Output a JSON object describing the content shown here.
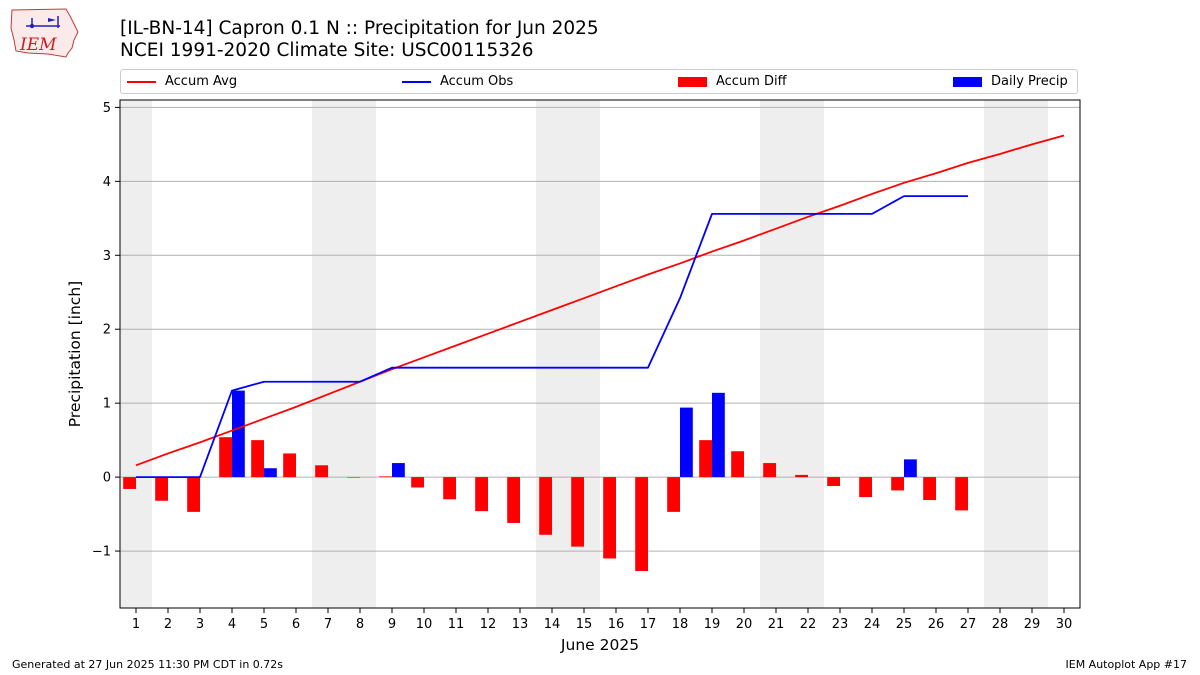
{
  "header": {
    "logo_text": "IEM",
    "title_line1": "[IL-BN-14] Capron 0.1 N :: Precipitation for Jun 2025",
    "title_line2": "NCEI 1991-2020 Climate Site: USC00115326"
  },
  "legend": [
    {
      "label": "Accum Avg",
      "kind": "line",
      "color": "#ff0000"
    },
    {
      "label": "Accum Obs",
      "kind": "line",
      "color": "#0000ff"
    },
    {
      "label": "Accum Diff",
      "kind": "bar",
      "color": "#ff0000"
    },
    {
      "label": "Daily Precip",
      "kind": "bar",
      "color": "#0000ff"
    }
  ],
  "footer": {
    "left": "Generated at 27 Jun 2025 11:30 PM CDT in 0.72s",
    "right": "IEM Autoplot App #17"
  },
  "chart_data": {
    "type": "bar",
    "xlabel": "June 2025",
    "ylabel": "Precipitation [inch]",
    "xlim": [
      0.5,
      30.5
    ],
    "ylim": [
      -1.77,
      5.1
    ],
    "yticks": [
      -1,
      0,
      1,
      2,
      3,
      4,
      5
    ],
    "ytick_labels": [
      "−1",
      "0",
      "1",
      "2",
      "3",
      "4",
      "5"
    ],
    "xticks": [
      1,
      2,
      3,
      4,
      5,
      6,
      7,
      8,
      9,
      10,
      11,
      12,
      13,
      14,
      15,
      16,
      17,
      18,
      19,
      20,
      21,
      22,
      23,
      24,
      25,
      26,
      27,
      28,
      29,
      30
    ],
    "grid": "horizontal",
    "weekend_shading": [
      [
        0.5,
        1.5
      ],
      [
        6.5,
        8.5
      ],
      [
        13.5,
        15.5
      ],
      [
        20.5,
        22.5
      ],
      [
        27.5,
        29.5
      ]
    ],
    "series": [
      {
        "name": "Accum Avg",
        "kind": "line",
        "color": "#ff0000",
        "x": [
          1,
          2,
          3,
          4,
          5,
          6,
          7,
          8,
          9,
          10,
          11,
          12,
          13,
          14,
          15,
          16,
          17,
          18,
          19,
          20,
          21,
          22,
          23,
          24,
          25,
          26,
          27,
          28,
          29,
          30
        ],
        "values": [
          0.16,
          0.32,
          0.47,
          0.63,
          0.79,
          0.95,
          1.12,
          1.29,
          1.46,
          1.62,
          1.78,
          1.94,
          2.1,
          2.26,
          2.42,
          2.58,
          2.74,
          2.89,
          3.05,
          3.2,
          3.36,
          3.52,
          3.67,
          3.83,
          3.98,
          4.11,
          4.25,
          4.37,
          4.5,
          4.62
        ]
      },
      {
        "name": "Accum Obs",
        "kind": "line",
        "color": "#0000ff",
        "x": [
          1,
          2,
          3,
          4,
          5,
          6,
          7,
          8,
          9,
          10,
          11,
          12,
          13,
          14,
          15,
          16,
          17,
          18,
          19,
          20,
          21,
          22,
          23,
          24,
          25,
          26,
          27
        ],
        "values": [
          0,
          0,
          0,
          1.17,
          1.29,
          1.29,
          1.29,
          1.29,
          1.48,
          1.48,
          1.48,
          1.48,
          1.48,
          1.48,
          1.48,
          1.48,
          1.48,
          2.42,
          3.56,
          3.56,
          3.56,
          3.56,
          3.56,
          3.56,
          3.8,
          3.8,
          3.8
        ]
      },
      {
        "name": "Accum Diff",
        "kind": "bar",
        "color": "#ff0000",
        "x": [
          1,
          2,
          3,
          4,
          5,
          6,
          7,
          8,
          9,
          10,
          11,
          12,
          13,
          14,
          15,
          16,
          17,
          18,
          19,
          20,
          21,
          22,
          23,
          24,
          25,
          26,
          27
        ],
        "values": [
          -0.16,
          -0.32,
          -0.47,
          0.54,
          0.5,
          0.32,
          0.16,
          0.0,
          0.01,
          -0.14,
          -0.3,
          -0.46,
          -0.62,
          -0.78,
          -0.94,
          -1.1,
          -1.27,
          -0.47,
          0.5,
          0.35,
          0.19,
          0.03,
          -0.12,
          -0.27,
          -0.18,
          -0.31,
          -0.45
        ]
      },
      {
        "name": "Daily Precip",
        "kind": "bar",
        "color": "#0000ff",
        "x": [
          4,
          5,
          9,
          18,
          19,
          25
        ],
        "values": [
          1.17,
          0.12,
          0.19,
          0.94,
          1.14,
          0.24
        ]
      }
    ]
  }
}
